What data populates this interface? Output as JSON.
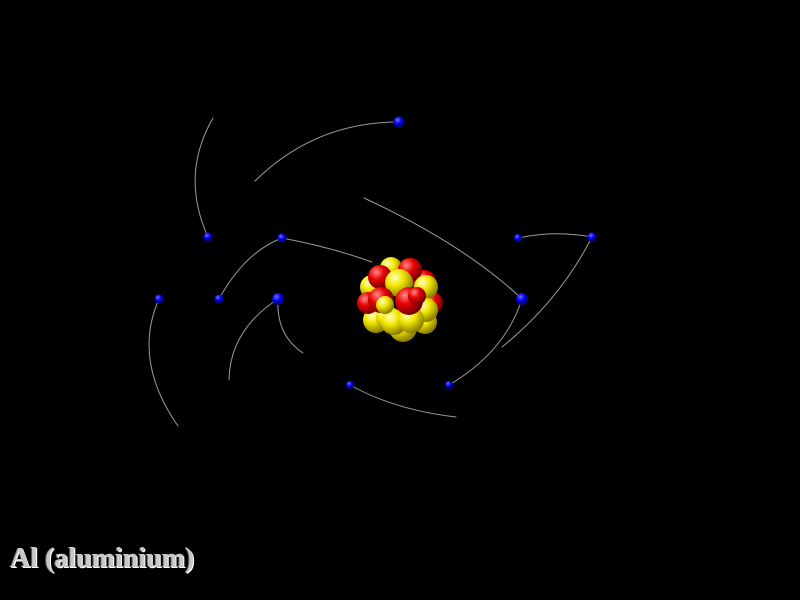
{
  "caption": {
    "element_label": "Al (aluminium)"
  },
  "atom": {
    "symbol": "Al",
    "electron_count": 13,
    "nucleus": {
      "proton_count": 13,
      "neutron_count": 14
    }
  },
  "colors": {
    "background": "#000000",
    "electron": "#0000e6",
    "orbit_trail": "#9a9a9a",
    "proton": "#e00000",
    "neutron": "#f2e600",
    "label": "#c8c8c8"
  },
  "icons": {
    "electron": "electron-dot",
    "nucleus": "nucleus-cluster"
  }
}
